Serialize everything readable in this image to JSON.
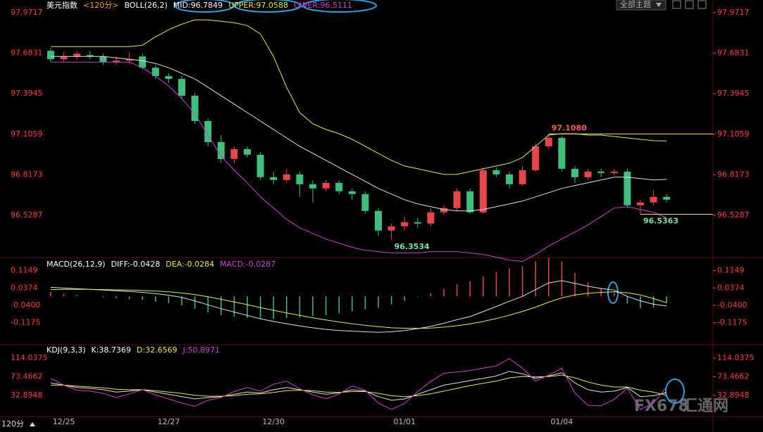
{
  "ui": {
    "theme_button": "全部主题",
    "period_button": "120分",
    "watermark_brand": "FX678",
    "watermark_name": "汇通网"
  },
  "chart_data": [
    {
      "type": "candlestick",
      "header": [
        {
          "text": "美元指数",
          "color": "#ffffff"
        },
        {
          "text": "<120分>",
          "color": "#e8a33a"
        },
        {
          "text": "BOLL(26,2)",
          "color": "#ffffff"
        },
        {
          "text": "MID:96.7849",
          "color": "#ffffff"
        },
        {
          "text": "UPPER:97.0588",
          "color": "#e8e84a"
        },
        {
          "text": "OWER:96.5111",
          "color": "#d040d0"
        }
      ],
      "categories": [
        null,
        "12/25",
        null,
        null,
        null,
        null,
        null,
        null,
        null,
        "12/27",
        null,
        null,
        null,
        null,
        null,
        null,
        null,
        "12/30",
        null,
        null,
        null,
        null,
        null,
        null,
        null,
        null,
        null,
        "01/01",
        null,
        null,
        null,
        null,
        null,
        null,
        null,
        null,
        null,
        null,
        null,
        "01/04",
        null,
        null,
        null,
        null,
        null,
        null,
        null,
        null
      ],
      "open": [
        97.7,
        97.64,
        97.66,
        97.67,
        97.66,
        97.62,
        97.63,
        97.66,
        97.58,
        97.52,
        97.5,
        97.38,
        97.2,
        97.05,
        96.93,
        97.0,
        96.96,
        96.8,
        96.78,
        96.82,
        96.75,
        96.72,
        96.76,
        96.7,
        96.68,
        96.56,
        96.42,
        96.45,
        96.48,
        96.47,
        96.55,
        96.58,
        96.7,
        96.55,
        96.85,
        96.82,
        96.75,
        96.85,
        97.02,
        97.08,
        96.86,
        96.8,
        96.84,
        96.83,
        96.84,
        96.6,
        96.62,
        96.66
      ],
      "high": [
        97.72,
        97.69,
        97.7,
        97.7,
        97.68,
        97.66,
        97.69,
        97.68,
        97.6,
        97.54,
        97.52,
        97.4,
        97.22,
        97.1,
        97.02,
        97.02,
        96.98,
        96.84,
        96.86,
        96.84,
        96.78,
        96.78,
        96.78,
        96.72,
        96.7,
        96.58,
        96.47,
        96.52,
        96.51,
        96.58,
        96.6,
        96.72,
        96.72,
        96.87,
        96.87,
        96.84,
        96.88,
        97.04,
        97.108,
        97.09,
        96.88,
        96.86,
        96.86,
        96.86,
        96.86,
        96.64,
        96.71,
        96.68
      ],
      "low": [
        97.62,
        97.62,
        97.64,
        97.64,
        97.6,
        97.6,
        97.61,
        97.57,
        97.5,
        97.47,
        97.36,
        97.18,
        97.02,
        96.9,
        96.9,
        96.94,
        96.78,
        96.75,
        96.76,
        96.66,
        96.62,
        96.7,
        96.68,
        96.64,
        96.54,
        96.38,
        96.3534,
        96.42,
        96.44,
        96.45,
        96.53,
        96.56,
        96.54,
        96.54,
        96.8,
        96.72,
        96.74,
        96.84,
        97.0,
        96.84,
        96.76,
        96.78,
        96.8,
        96.81,
        96.58,
        96.5363,
        96.6,
        96.62
      ],
      "close": [
        97.64,
        97.66,
        97.68,
        97.66,
        97.62,
        97.63,
        97.64,
        97.58,
        97.52,
        97.5,
        97.38,
        97.2,
        97.05,
        96.93,
        97.0,
        96.96,
        96.8,
        96.78,
        96.82,
        96.75,
        96.72,
        96.76,
        96.7,
        96.68,
        96.56,
        96.42,
        96.45,
        96.48,
        96.47,
        96.55,
        96.58,
        96.7,
        96.55,
        96.85,
        96.82,
        96.75,
        96.85,
        97.02,
        97.08,
        96.86,
        96.8,
        96.84,
        96.83,
        96.84,
        96.6,
        96.62,
        96.66,
        96.64
      ],
      "up_color": "#e8454a",
      "down_color": "#3cc07c",
      "series": [
        {
          "color": "#e0e0e0",
          "values": [
            97.66,
            97.66,
            97.66,
            97.66,
            97.66,
            97.65,
            97.64,
            97.63,
            97.61,
            97.58,
            97.54,
            97.5,
            97.44,
            97.38,
            97.32,
            97.26,
            97.2,
            97.14,
            97.08,
            97.02,
            96.97,
            96.92,
            96.87,
            96.82,
            96.77,
            96.72,
            96.68,
            96.64,
            96.61,
            96.59,
            96.57,
            96.56,
            96.56,
            96.57,
            96.59,
            96.61,
            96.63,
            96.66,
            96.69,
            96.72,
            96.74,
            96.76,
            96.78,
            96.8,
            96.8,
            96.79,
            96.78,
            96.7849
          ]
        },
        {
          "color": "#e8e84a",
          "values": [
            97.73,
            97.73,
            97.73,
            97.73,
            97.73,
            97.73,
            97.73,
            97.74,
            97.8,
            97.85,
            97.89,
            97.92,
            97.92,
            97.91,
            97.9,
            97.88,
            97.82,
            97.66,
            97.44,
            97.26,
            97.18,
            97.14,
            97.11,
            97.07,
            97.02,
            96.97,
            96.92,
            96.88,
            96.86,
            96.84,
            96.82,
            96.82,
            96.84,
            96.86,
            96.88,
            96.9,
            96.94,
            97.02,
            97.1,
            97.11,
            97.11,
            97.1,
            97.1,
            97.09,
            97.08,
            97.07,
            97.06,
            97.0588
          ]
        },
        {
          "color": "#d040d0",
          "values": [
            97.62,
            97.62,
            97.62,
            97.62,
            97.62,
            97.62,
            97.62,
            97.58,
            97.52,
            97.45,
            97.36,
            97.25,
            97.1,
            96.95,
            96.85,
            96.76,
            96.66,
            96.58,
            96.5,
            96.44,
            96.4,
            96.36,
            96.33,
            96.3,
            96.28,
            96.27,
            96.26,
            96.26,
            96.26,
            96.27,
            96.27,
            96.27,
            96.26,
            96.25,
            96.23,
            96.21,
            96.2,
            96.25,
            96.31,
            96.36,
            96.41,
            96.46,
            96.52,
            96.58,
            96.59,
            96.57,
            96.55,
            96.5111
          ]
        }
      ],
      "annotations": [
        {
          "label": "97.1080",
          "value": 97.108,
          "color": "#ff5a5a",
          "line": true
        },
        {
          "label": "96.5363",
          "value": 96.5363,
          "color": "#7fe0a0",
          "line": true
        },
        {
          "label": "96.3534",
          "value": 96.3534,
          "color": "#7fe0a0",
          "line": false
        }
      ],
      "line_color": "#e8e84a",
      "ylim": [
        96.233,
        98.062
      ],
      "yticks": [
        97.9717,
        97.6831,
        97.3945,
        97.1059,
        96.8173,
        96.5287
      ]
    },
    {
      "type": "macd",
      "header": [
        {
          "text": "MACD(26,12,9)",
          "color": "#ffffff"
        },
        {
          "text": "DIFF:-0.0428",
          "color": "#ffffff"
        },
        {
          "text": "DEA:-0.0284",
          "color": "#e8e84a"
        },
        {
          "text": "MACD:-0.0287",
          "color": "#d040d0"
        }
      ],
      "series": [
        {
          "color": "#e0e0e0",
          "values": [
            0.04,
            0.037,
            0.034,
            0.031,
            0.028,
            0.025,
            0.022,
            0.018,
            0.012,
            0.005,
            -0.005,
            -0.02,
            -0.038,
            -0.055,
            -0.07,
            -0.085,
            -0.1,
            -0.112,
            -0.122,
            -0.132,
            -0.14,
            -0.147,
            -0.152,
            -0.155,
            -0.158,
            -0.16,
            -0.158,
            -0.152,
            -0.144,
            -0.134,
            -0.12,
            -0.104,
            -0.09,
            -0.068,
            -0.045,
            -0.022,
            0.0,
            0.03,
            0.06,
            0.07,
            0.058,
            0.045,
            0.035,
            0.028,
            0.0,
            -0.02,
            -0.035,
            -0.0428
          ]
        },
        {
          "color": "#e8e84a",
          "values": [
            0.03,
            0.031,
            0.031,
            0.031,
            0.03,
            0.029,
            0.028,
            0.026,
            0.024,
            0.02,
            0.015,
            0.008,
            -0.002,
            -0.013,
            -0.025,
            -0.037,
            -0.05,
            -0.062,
            -0.074,
            -0.085,
            -0.096,
            -0.105,
            -0.114,
            -0.122,
            -0.129,
            -0.135,
            -0.14,
            -0.142,
            -0.143,
            -0.141,
            -0.137,
            -0.131,
            -0.123,
            -0.112,
            -0.099,
            -0.084,
            -0.067,
            -0.048,
            -0.026,
            -0.007,
            0.006,
            0.014,
            0.018,
            0.02,
            0.016,
            0.006,
            -0.01,
            -0.0284
          ]
        }
      ],
      "histogram": {
        "up_color": "#e8454a",
        "down_color": "#3cc07c",
        "values": [
          0.02,
          0.012,
          0.006,
          0.0,
          -0.004,
          -0.008,
          -0.012,
          -0.016,
          -0.024,
          -0.03,
          -0.04,
          -0.056,
          -0.072,
          -0.084,
          -0.09,
          -0.096,
          -0.1,
          -0.1,
          -0.096,
          -0.094,
          -0.088,
          -0.084,
          -0.076,
          -0.066,
          -0.058,
          -0.05,
          -0.036,
          -0.02,
          -0.002,
          0.014,
          0.034,
          0.054,
          0.066,
          0.088,
          0.108,
          0.124,
          0.134,
          0.156,
          0.172,
          0.154,
          0.104,
          0.062,
          0.034,
          0.016,
          -0.032,
          -0.052,
          -0.05,
          -0.0287
        ]
      },
      "ylim": [
        -0.2094,
        0.1668
      ],
      "yticks": [
        0.1149,
        0.0374,
        {
          "value": -0.04,
          "label": "-0.0400"
        },
        -0.1175
      ]
    },
    {
      "type": "line",
      "header": [
        {
          "text": "KDJ(9,3,3)",
          "color": "#ffffff"
        },
        {
          "text": "K:38.7369",
          "color": "#ffffff"
        },
        {
          "text": "D:32.6569",
          "color": "#e8e84a"
        },
        {
          "text": "J:50.8971",
          "color": "#d040d0"
        }
      ],
      "series": [
        {
          "color": "#e0e0e0",
          "values": [
            60,
            55,
            50,
            48,
            45,
            40,
            42,
            45,
            40,
            35,
            30,
            25,
            28,
            30,
            35,
            40,
            38,
            45,
            50,
            45,
            40,
            35,
            38,
            45,
            42,
            30,
            22,
            25,
            35,
            45,
            55,
            60,
            65,
            70,
            75,
            85,
            80,
            70,
            75,
            82,
            60,
            45,
            40,
            42,
            50,
            30,
            32,
            38.7369
          ]
        },
        {
          "color": "#e8e84a",
          "values": [
            55,
            55,
            53,
            51,
            49,
            46,
            45,
            45,
            43,
            40,
            37,
            33,
            31,
            31,
            32,
            35,
            36,
            39,
            43,
            44,
            43,
            40,
            39,
            41,
            41,
            37,
            32,
            30,
            32,
            36,
            42,
            48,
            54,
            59,
            64,
            71,
            74,
            73,
            74,
            77,
            71,
            62,
            55,
            51,
            51,
            44,
            40,
            32.6569
          ]
        },
        {
          "color": "#d040d0",
          "values": [
            70,
            55,
            44,
            42,
            37,
            28,
            36,
            45,
            34,
            25,
            16,
            9,
            22,
            28,
            41,
            50,
            42,
            57,
            64,
            47,
            34,
            25,
            36,
            53,
            44,
            16,
            2,
            15,
            41,
            63,
            81,
            84,
            87,
            92,
            97,
            113,
            92,
            64,
            77,
            92,
            38,
            11,
            10,
            24,
            48,
            2,
            16,
            50.8971
          ]
        }
      ],
      "ylim": [
        -10.4,
        140.15
      ],
      "yticks": [
        114.0375,
        73.4662,
        32.8948
      ]
    }
  ]
}
